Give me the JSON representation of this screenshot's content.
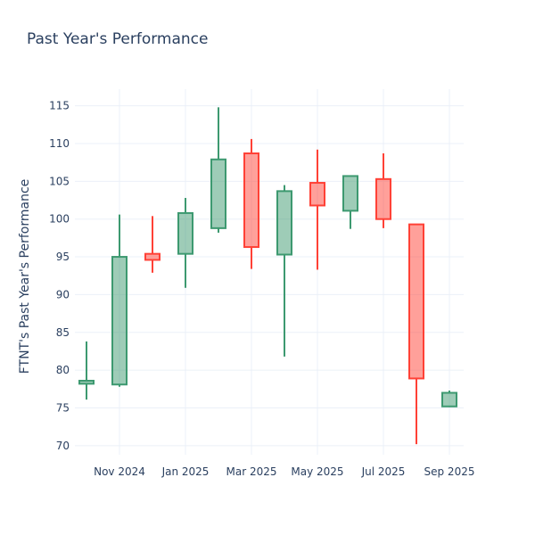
{
  "chart_data": {
    "type": "candlestick",
    "title": "Past Year's Performance",
    "xlabel": "",
    "ylabel": "FTNT's Past Year's Performance",
    "ylim": [
      68.8,
      117.2
    ],
    "yticks": [
      70,
      75,
      80,
      85,
      90,
      95,
      100,
      105,
      110,
      115
    ],
    "xticks": [
      {
        "month": 1,
        "label": "Nov 2024"
      },
      {
        "month": 3,
        "label": "Jan 2025"
      },
      {
        "month": 5,
        "label": "Mar 2025"
      },
      {
        "month": 7,
        "label": "May 2025"
      },
      {
        "month": 9,
        "label": "Jul 2025"
      },
      {
        "month": 11,
        "label": "Sep 2025"
      }
    ],
    "grid": true,
    "colors": {
      "increasing": "#3d9970",
      "decreasing": "#ff4136",
      "increasing_fill": "rgba(61,153,112,0.5)",
      "decreasing_fill": "rgba(255,65,54,0.5)"
    },
    "candles": [
      {
        "date": "2024-10",
        "open": 78.2,
        "high": 83.8,
        "low": 76.1,
        "close": 78.6
      },
      {
        "date": "2024-11",
        "open": 78.1,
        "high": 100.6,
        "low": 77.8,
        "close": 95.0
      },
      {
        "date": "2024-12",
        "open": 95.4,
        "high": 100.4,
        "low": 92.9,
        "close": 94.6
      },
      {
        "date": "2025-01",
        "open": 95.4,
        "high": 102.8,
        "low": 90.9,
        "close": 100.8
      },
      {
        "date": "2025-02",
        "open": 98.8,
        "high": 114.8,
        "low": 98.2,
        "close": 107.9
      },
      {
        "date": "2025-03",
        "open": 108.7,
        "high": 110.6,
        "low": 93.4,
        "close": 96.3
      },
      {
        "date": "2025-04",
        "open": 95.3,
        "high": 104.5,
        "low": 81.8,
        "close": 103.7
      },
      {
        "date": "2025-05",
        "open": 104.8,
        "high": 109.2,
        "low": 93.3,
        "close": 101.8
      },
      {
        "date": "2025-06",
        "open": 101.1,
        "high": 105.8,
        "low": 98.7,
        "close": 105.7
      },
      {
        "date": "2025-07",
        "open": 105.3,
        "high": 108.7,
        "low": 98.8,
        "close": 100.0
      },
      {
        "date": "2025-08",
        "open": 99.3,
        "high": 99.3,
        "low": 70.2,
        "close": 78.9
      },
      {
        "date": "2025-09",
        "open": 75.2,
        "high": 77.3,
        "low": 75.1,
        "close": 77.0
      }
    ]
  }
}
